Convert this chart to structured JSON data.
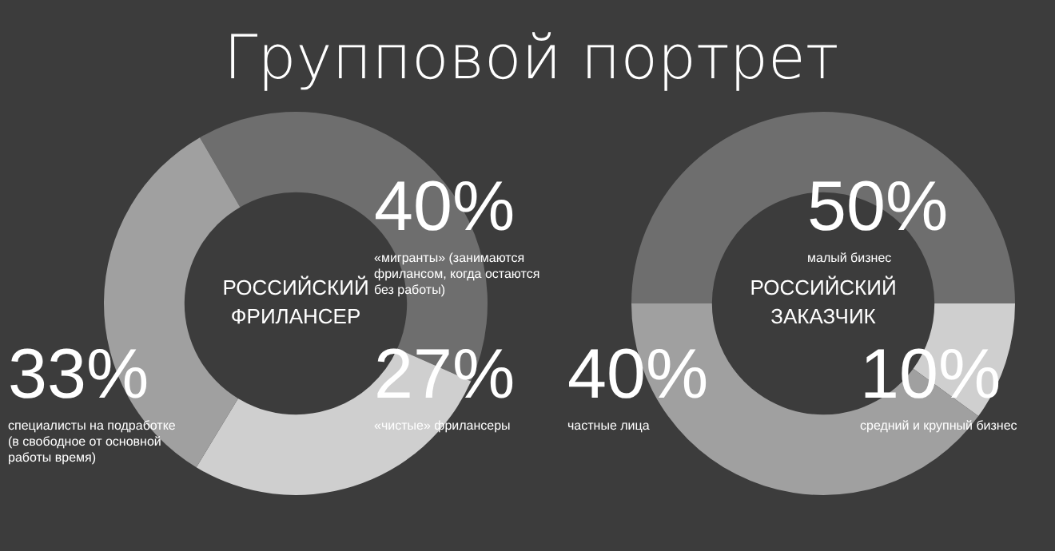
{
  "chart_data": [
    {
      "type": "donut",
      "title": "Групповой портрет",
      "categories": [
        "«мигранты» (занимаются фрилансом, когда остаются без работы)",
        "«чистые» фрилансеры",
        "специалисты на подработке (в свободное от основной работы время)"
      ],
      "values": [
        40,
        27,
        33
      ],
      "colors": [
        "#6e6e6e",
        "#cfcfcf",
        "#a0a0a0"
      ],
      "value_labels": [
        "40%",
        "27%",
        "33%"
      ],
      "annotations": [
        "РОССИЙСКИЙ ФРИЛАНСЕР"
      ]
    },
    {
      "type": "donut",
      "categories": [
        "малый бизнес",
        "средний и крупный бизнес",
        "частные лица"
      ],
      "values": [
        50,
        10,
        40
      ],
      "colors": [
        "#6e6e6e",
        "#cfcfcf",
        "#a0a0a0"
      ],
      "value_labels": [
        "50%",
        "10%",
        "40%"
      ],
      "annotations": [
        "РОССИЙСКИЙ ЗАКАЗЧИК"
      ]
    }
  ]
}
